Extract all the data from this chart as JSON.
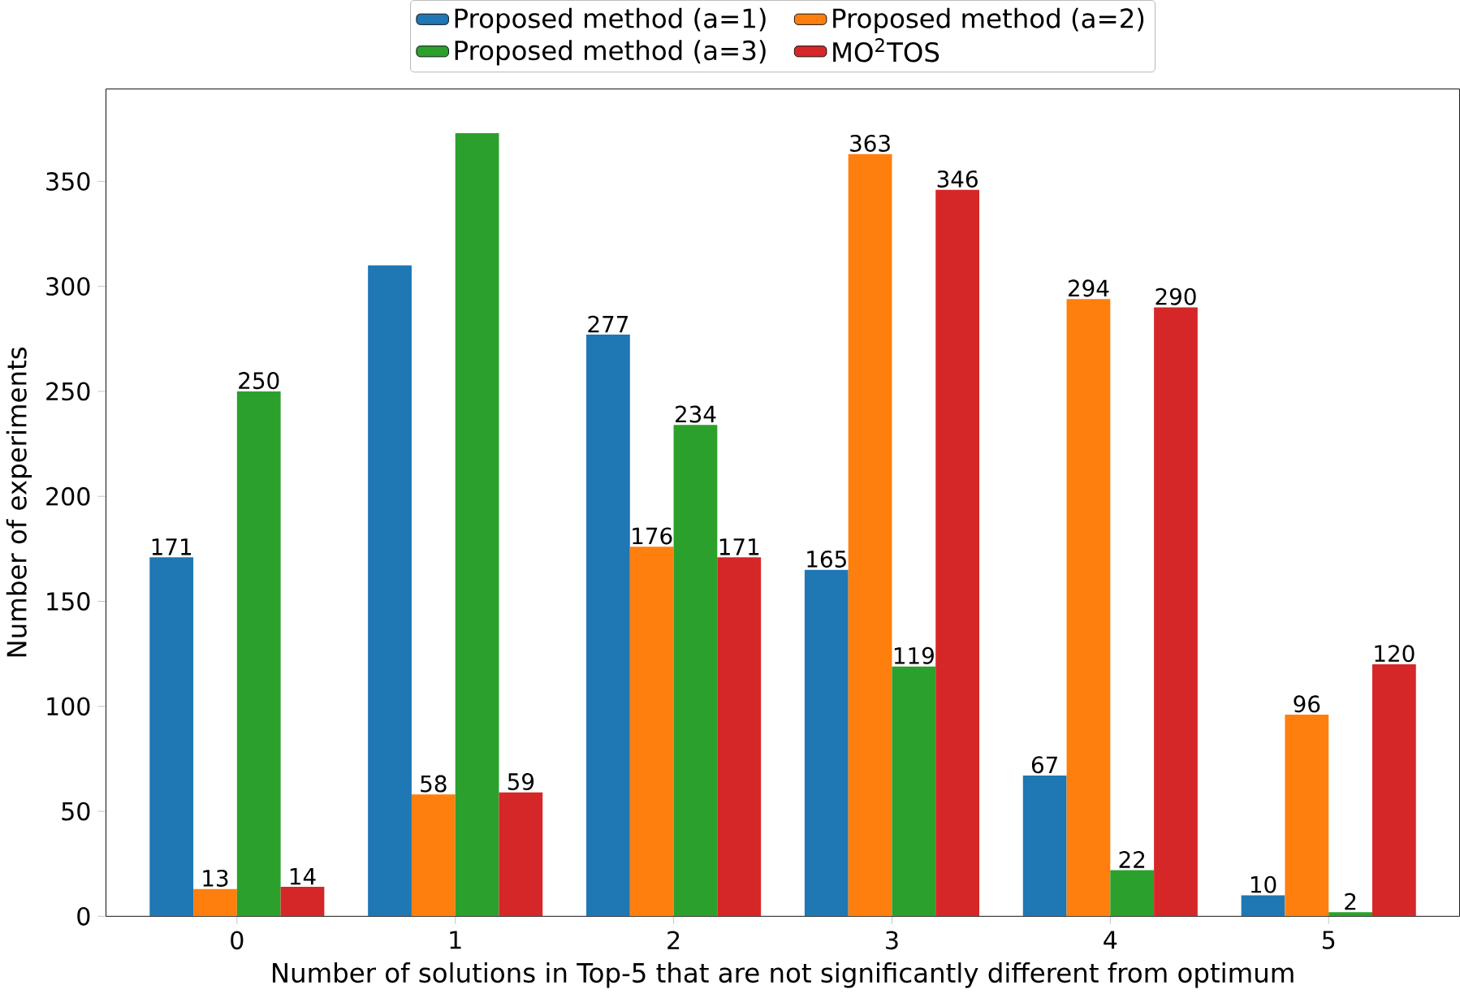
{
  "chart_data": {
    "type": "bar",
    "xlabel": "Number of solutions in Top-5 that are not significantly different from optimum",
    "ylabel": "Number of experiments",
    "categories": [
      "0",
      "1",
      "2",
      "3",
      "4",
      "5"
    ],
    "series": [
      {
        "name": "Proposed method (a=1)",
        "color": "#1f77b4",
        "values": [
          171,
          310,
          277,
          165,
          67,
          10
        ],
        "value_labels": [
          "171",
          null,
          "277",
          "165",
          "67",
          "10"
        ]
      },
      {
        "name": "Proposed method (a=2)",
        "color": "#ff7f0e",
        "values": [
          13,
          58,
          176,
          363,
          294,
          96
        ],
        "value_labels": [
          "13",
          "58",
          "176",
          "363",
          "294",
          "96"
        ]
      },
      {
        "name": "Proposed method (a=3)",
        "color": "#2ca02c",
        "values": [
          250,
          373,
          234,
          119,
          22,
          2
        ],
        "value_labels": [
          "250",
          null,
          "234",
          "119",
          "22",
          "2"
        ]
      },
      {
        "name": "MO$^{2}$TOS",
        "color": "#d62728",
        "values": [
          14,
          59,
          171,
          346,
          290,
          120
        ],
        "value_labels": [
          "14",
          "59",
          "171",
          "346",
          "290",
          "120"
        ]
      }
    ],
    "ylim": [
      0,
      394
    ],
    "yticks": [
      0,
      50,
      100,
      150,
      200,
      250,
      300,
      350
    ],
    "legend": "top"
  }
}
